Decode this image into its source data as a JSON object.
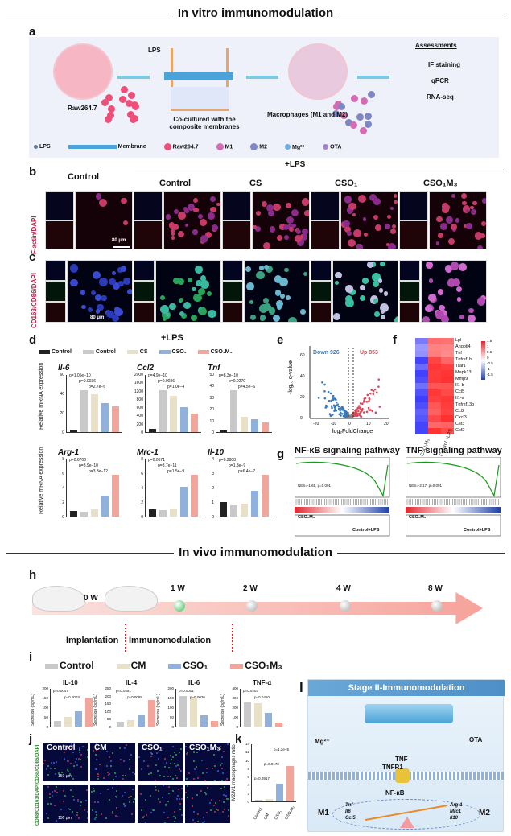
{
  "section_titles": {
    "in_vitro": "In vitro immunomodulation",
    "in_vivo": "In vivo immunomodulation"
  },
  "panel_letters": [
    "a",
    "b",
    "c",
    "d",
    "e",
    "f",
    "g",
    "h",
    "i",
    "j",
    "k",
    "l"
  ],
  "panel_a": {
    "raw_label": "Raw264.7",
    "lps_label": "LPS",
    "coculture_label": "Co-cultured with the composite membranes",
    "macrophages_label": "Macrophages (M1 and M2)",
    "assessments_title": "Assessments",
    "assessments": [
      "IF staining",
      "qPCR",
      "RNA-seq"
    ],
    "legend": [
      "LPS",
      "Membrane",
      "Raw264.7",
      "M1",
      "M2",
      "Mg²⁺",
      "OTA"
    ]
  },
  "panel_b": {
    "lps_header": "+LPS",
    "columns": [
      "Control",
      "Control",
      "CS",
      "CSO₁",
      "CSO₁M₃"
    ],
    "row_label": "F-actin/DAPI",
    "scale": "80 μm"
  },
  "panel_c": {
    "row_label": "CD163/CD86/DAPI",
    "scale": "80 μm"
  },
  "panel_d": {
    "lps_header": "+LPS",
    "legend": [
      "Control",
      "Control",
      "CS",
      "CSO₁",
      "CSO₁M₃"
    ],
    "ylabel": "Relative mRNA expression",
    "charts": [
      {
        "gene": "Il-6",
        "ticks": [
          "0",
          "20",
          "40",
          "60"
        ],
        "values": [
          2,
          40,
          36,
          28,
          25
        ],
        "pvals": [
          "p=1.05e−10",
          "p=0.0036",
          "p=2.7e−6"
        ]
      },
      {
        "gene": "Ccl2",
        "ticks": [
          "0",
          "200",
          "400",
          "600",
          "800",
          "1200",
          "1600",
          "2000"
        ],
        "values": [
          60,
          800,
          700,
          480,
          360
        ],
        "pvals": [
          "p=4.9e−10",
          "p=0.0036",
          "p=1.0e−4"
        ]
      },
      {
        "gene": "Tnf",
        "ticks": [
          "0",
          "10",
          "20",
          "30",
          "40",
          "50"
        ],
        "values": [
          2,
          42,
          15,
          13,
          10
        ],
        "pvals": [
          "p=8.3e−10",
          "p=0.0270",
          "p=4.5e−6"
        ]
      },
      {
        "gene": "Arg-1",
        "ticks": [
          "0",
          "2",
          "4",
          "6",
          "8"
        ],
        "values": [
          1,
          0.9,
          1.2,
          3.6,
          7.3
        ],
        "pvals": [
          "p=0.6700",
          "p=3.9e−10",
          "p=3.3e−12"
        ]
      },
      {
        "gene": "Mrc-1",
        "ticks": [
          "0",
          "2",
          "4",
          "6",
          "8"
        ],
        "values": [
          1,
          0.8,
          1.1,
          3.9,
          5.5
        ],
        "pvals": [
          "p=0.0671",
          "p=3.7e−11",
          "p=1.5e−9"
        ]
      },
      {
        "gene": "Il-10",
        "ticks": [
          "0",
          "1",
          "2",
          "3",
          "4"
        ],
        "values": [
          1,
          0.8,
          0.9,
          1.8,
          2.9
        ],
        "pvals": [
          "p=0.2808",
          "p=1.3e−9",
          "p=6.4e−7"
        ]
      }
    ]
  },
  "panel_e": {
    "down": "Down 926",
    "up": "Up 853",
    "xlabel": "log₂FoldChange",
    "ylabel": "-log₁₀ q-value",
    "yticks": [
      "0",
      "20",
      "40",
      "60"
    ],
    "xticks": [
      "-20",
      "-10",
      "0",
      "10",
      "20"
    ]
  },
  "panel_f": {
    "genes": [
      "Lpl",
      "Angptl4",
      "Tnf",
      "Tnfrsf1b",
      "Traf1",
      "Mapk13",
      "Mmp9",
      "Il1-b",
      "Ccl5",
      "Il1-a",
      "Tnfrsf13b",
      "Ccl2",
      "Cxcl3",
      "Csf3",
      "Csf2"
    ],
    "groups": [
      "CSO₁M₃",
      "Control +LPS"
    ],
    "scale": [
      "1.5",
      "1",
      "0.5",
      "0",
      "-0.5",
      "-1",
      "-1.5"
    ]
  },
  "panel_g": {
    "titles": [
      "NF-κB signaling pathway",
      "TNF signaling pathway"
    ],
    "stats": [
      "NES=-1.65, p=0.001",
      "NES=-2.17, p=0.001"
    ],
    "group_left": "CSO₁M₃",
    "group_right": "Control+LPS"
  },
  "panel_h": {
    "timepoints": [
      "0 W",
      "1 W",
      "2 W",
      "4 W",
      "8 W"
    ],
    "phase1": "Implantation",
    "phase2": "Immunomodulation"
  },
  "panel_i": {
    "legend": [
      "Control",
      "CM",
      "CSO₁",
      "CSO₁M₃"
    ],
    "legend_colors": [
      "#c9c9c9",
      "#e8e1c8",
      "#8fb1dc",
      "#f2a59a"
    ],
    "ylabel": "Secretion (pg/mL)",
    "charts": [
      {
        "title": "IL-10",
        "ticks": [
          "0",
          "50",
          "100",
          "150",
          "200"
        ],
        "values": [
          30,
          50,
          80,
          150
        ],
        "ymax": 200,
        "pvals": [
          "p=0.0047",
          "p=0.0003"
        ]
      },
      {
        "title": "IL-4",
        "ticks": [
          "0",
          "50",
          "100",
          "150",
          "200",
          "250"
        ],
        "values": [
          30,
          40,
          80,
          170
        ],
        "ymax": 250,
        "pvals": [
          "p=0.0451",
          "p=0.0088"
        ]
      },
      {
        "title": "IL-6",
        "ticks": [
          "0",
          "50",
          "100",
          "150",
          "200"
        ],
        "values": [
          160,
          155,
          60,
          30
        ],
        "ymax": 200,
        "pvals": [
          "p=0.0001",
          "p=0.0036"
        ]
      },
      {
        "title": "TNF-α",
        "ticks": [
          "0",
          "100",
          "200",
          "300",
          "400"
        ],
        "values": [
          250,
          240,
          140,
          40
        ],
        "ymax": 400,
        "pvals": [
          "p=0.0203",
          "p=0.0410"
        ]
      }
    ]
  },
  "panel_j": {
    "columns": [
      "Control",
      "CM",
      "CSO₁",
      "CSO₁M₃"
    ],
    "row_labels": [
      "CD68/CD86/DAPI",
      "CD68/CD163/DAPI"
    ],
    "scale": "150 μm"
  },
  "panel_k": {
    "ylabel": "M2/M1 macrophages ratio",
    "categories": [
      "Control",
      "CM",
      "CSO₁",
      "CSO₁M₃"
    ],
    "values": [
      0.3,
      0.6,
      4.2,
      8.5
    ],
    "ticks": [
      "0",
      "2",
      "4",
      "6",
      "8",
      "10",
      "12",
      "14"
    ],
    "pvals": [
      "p=0.8917",
      "p=0.0172",
      "p=1.2e−5"
    ]
  },
  "panel_l": {
    "title": "Stage II-Immunomodulation",
    "mg": "Mg²⁺",
    "ota": "OTA",
    "tnf": "TNF",
    "tnfr1": "TNFR1",
    "nfkb": "NF-κB",
    "m1": "M1",
    "m2": "M2",
    "m1_genes": "Tnf\nIl6\nCcl5",
    "m2_genes": "Arg-1\nMrc1\nIl10"
  }
}
